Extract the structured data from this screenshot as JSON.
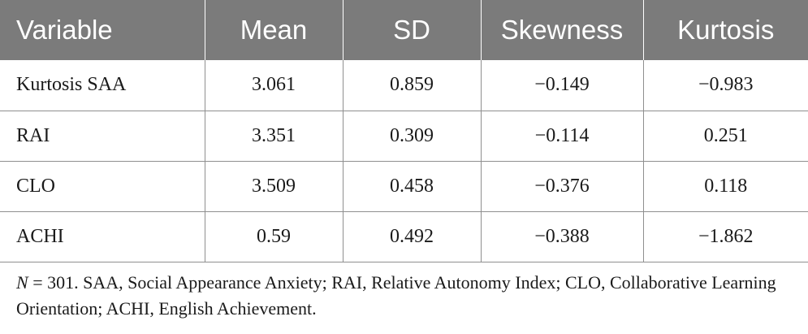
{
  "table": {
    "headers": [
      "Variable",
      "Mean",
      "SD",
      "Skewness",
      "Kurtosis"
    ],
    "rows": [
      [
        "Kurtosis SAA",
        "3.061",
        "0.859",
        "−0.149",
        "−0.983"
      ],
      [
        "RAI",
        "3.351",
        "0.309",
        "−0.114",
        "0.251"
      ],
      [
        "CLO",
        "3.509",
        "0.458",
        "−0.376",
        "0.118"
      ],
      [
        "ACHI",
        "0.59",
        "0.492",
        "−0.388",
        "−1.862"
      ]
    ]
  },
  "footnote": {
    "n_symbol": "N",
    "text": " = 301. SAA, Social Appearance Anxiety; RAI, Relative Autonomy Index; CLO, Collaborative Learning Orientation; ACHI, English Achievement."
  },
  "colors": {
    "header_bg": "#7b7b7b",
    "header_text": "#ffffff",
    "rule": "#8f8f8f"
  }
}
